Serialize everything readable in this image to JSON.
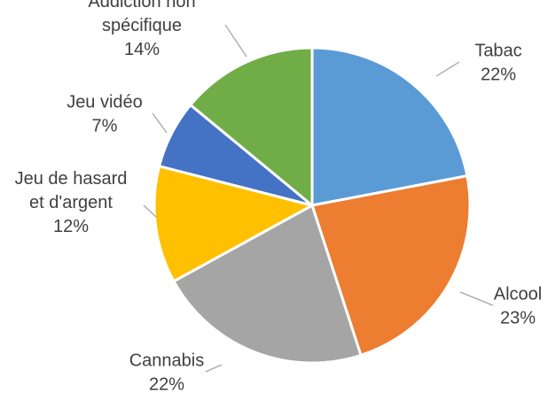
{
  "chart_data": {
    "type": "pie",
    "title": "",
    "slices": [
      {
        "label": [
          "Tabac"
        ],
        "percent_label": "22%",
        "value": 22,
        "color": "#5b9bd5"
      },
      {
        "label": [
          "Alcool"
        ],
        "percent_label": "23%",
        "value": 23,
        "color": "#ed7d31"
      },
      {
        "label": [
          "Cannabis"
        ],
        "percent_label": "22%",
        "value": 22,
        "color": "#a5a5a5"
      },
      {
        "label": [
          "Jeu de hasard",
          "et d'argent"
        ],
        "percent_label": "12%",
        "value": 12,
        "color": "#ffc000"
      },
      {
        "label": [
          "Jeu vidéo"
        ],
        "percent_label": "7%",
        "value": 7,
        "color": "#4472c4"
      },
      {
        "label": [
          "Addiction non",
          "spécifique"
        ],
        "percent_label": "14%",
        "value": 14,
        "color": "#70ad47"
      }
    ],
    "start_angle": "12 o'clock",
    "direction": "clockwise",
    "legend": "none"
  }
}
